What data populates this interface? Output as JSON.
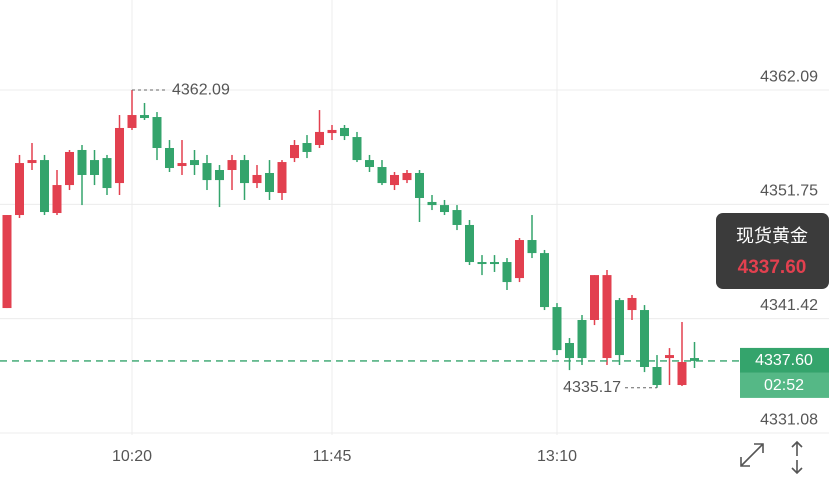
{
  "chart_data": {
    "type": "candlestick",
    "categories": [
      null,
      null,
      null,
      null,
      null,
      null,
      null,
      null,
      null,
      null,
      "10:20",
      null,
      null,
      null,
      null,
      null,
      null,
      null,
      null,
      null,
      null,
      null,
      null,
      null,
      null,
      null,
      "11:45",
      null,
      null,
      null,
      null,
      null,
      null,
      null,
      null,
      null,
      null,
      null,
      null,
      null,
      null,
      null,
      null,
      null,
      "13:10",
      null,
      null,
      null,
      null,
      null,
      null,
      null,
      null,
      null,
      null,
      null
    ],
    "open": [
      4342.38,
      4350.79,
      4355.49,
      4355.76,
      4350.97,
      4353.5,
      4356.67,
      4355.76,
      4355.94,
      4353.68,
      4358.66,
      4359.83,
      4359.65,
      4356.85,
      4355.22,
      4355.76,
      4355.49,
      4354.86,
      4354.86,
      4355.76,
      4353.68,
      4354.59,
      4352.78,
      4355.94,
      4357.3,
      4357.12,
      4358.2,
      4358.66,
      4357.84,
      4355.76,
      4355.13,
      4353.5,
      4353.95,
      4354.59,
      4351.97,
      4351.69,
      4351.24,
      4349.89,
      4346.54,
      4346.54,
      4346.54,
      4345.09,
      4348.53,
      4347.35,
      4342.47,
      4339.22,
      4341.3,
      4341.3,
      4337.86,
      4343.1,
      4342.2,
      4342.2,
      4337.05,
      4337.86,
      4335.42,
      4337.86
    ],
    "high": [
      4350.79,
      4356.22,
      4357.3,
      4356.22,
      4354.86,
      4356.67,
      4357.12,
      4356.67,
      4356.22,
      4359.83,
      4362.09,
      4360.92,
      4360.1,
      4357.57,
      4357.57,
      4356.67,
      4356.22,
      4355.31,
      4356.22,
      4356.22,
      4355.31,
      4355.76,
      4355.76,
      4357.57,
      4358.02,
      4360.28,
      4358.93,
      4358.93,
      4358.3,
      4356.22,
      4355.76,
      4354.68,
      4354.86,
      4354.86,
      4352.6,
      4352.15,
      4351.69,
      4350.34,
      4347.17,
      4347.17,
      4346.9,
      4348.71,
      4350.79,
      4347.63,
      4342.83,
      4339.67,
      4341.75,
      4345.36,
      4345.82,
      4343.29,
      4343.56,
      4342.65,
      4338.13,
      4338.76,
      4341.12,
      4339.31
    ],
    "low": [
      4342.38,
      4350.52,
      4354.86,
      4350.79,
      4350.79,
      4353.05,
      4351.69,
      4353.5,
      4352.6,
      4352.6,
      4358.48,
      4359.38,
      4355.76,
      4354.68,
      4354.41,
      4354.41,
      4353.05,
      4351.51,
      4353.05,
      4352.15,
      4353.23,
      4352.15,
      4352.15,
      4355.58,
      4355.94,
      4356.85,
      4357.57,
      4357.57,
      4355.58,
      4354.68,
      4353.5,
      4353.05,
      4353.68,
      4350.16,
      4351.24,
      4350.79,
      4349.43,
      4346.27,
      4345.36,
      4345.64,
      4344.01,
      4344.73,
      4346.9,
      4342.2,
      4338.13,
      4336.77,
      4337.23,
      4340.84,
      4337.23,
      4337.23,
      4341.3,
      4336.59,
      4335.17,
      4335.42,
      4335.33,
      4336.96
    ],
    "close": [
      4350.79,
      4355.49,
      4355.76,
      4351.06,
      4353.5,
      4356.49,
      4354.41,
      4354.41,
      4353.23,
      4358.66,
      4359.83,
      4359.56,
      4356.85,
      4355.04,
      4355.49,
      4355.31,
      4353.95,
      4353.95,
      4355.76,
      4353.68,
      4354.41,
      4352.87,
      4355.58,
      4357.12,
      4356.49,
      4358.3,
      4358.48,
      4357.93,
      4355.76,
      4355.13,
      4353.68,
      4354.41,
      4354.59,
      4352.33,
      4351.69,
      4351.06,
      4349.89,
      4346.54,
      4346.36,
      4346.36,
      4344.73,
      4348.53,
      4347.35,
      4342.47,
      4338.58,
      4337.86,
      4337.86,
      4345.36,
      4345.36,
      4338.13,
      4343.29,
      4337.05,
      4335.42,
      4338.13,
      4337.5,
      4337.6
    ],
    "up_color": "#e2404f",
    "down_color": "#34a46c",
    "ylim": [
      4330.45,
      4370.23
    ],
    "yticks": [
      4362.09,
      4351.75,
      4341.42,
      4331.08
    ],
    "grid": true,
    "high_label": 4362.09,
    "low_label": 4335.17,
    "last_price": {
      "value": 4337.6,
      "label": "4337.60"
    },
    "instrument": "现货黄金",
    "countdown": "02:52"
  }
}
